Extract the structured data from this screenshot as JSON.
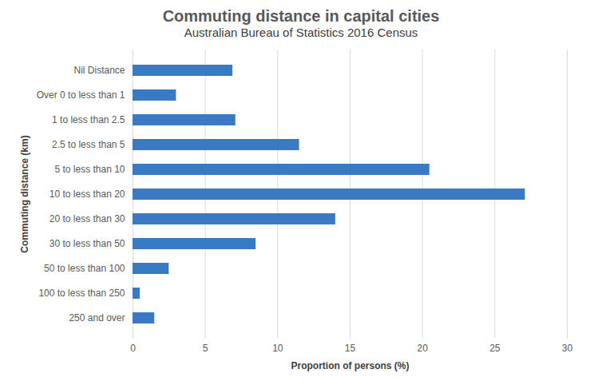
{
  "chart_data": {
    "type": "bar",
    "title": "Commuting distance in capital cities",
    "subtitle": "Australian Bureau of Statistics 2016 Census",
    "x_label": "Proportion of persons (%)",
    "y_label": "Commuting distance (km)",
    "orientation": "horizontal",
    "categories": [
      "Nil Distance",
      "Over 0 to less than 1",
      "1 to less than 2.5",
      "2.5 to less than 5",
      "5 to less than 10",
      "10 to less than 20",
      "20 to less than 30",
      "30 to less than 50",
      "50 to less than 100",
      "100 to less than 250",
      "250 and over"
    ],
    "values": [
      6.9,
      3.0,
      7.1,
      11.5,
      20.5,
      27.1,
      14.0,
      8.5,
      2.5,
      0.5,
      1.5
    ],
    "color": "#3a79c4",
    "xlim": [
      0,
      30
    ],
    "xticks": [
      0,
      5,
      10,
      15,
      20,
      25,
      30
    ],
    "grid": true
  }
}
